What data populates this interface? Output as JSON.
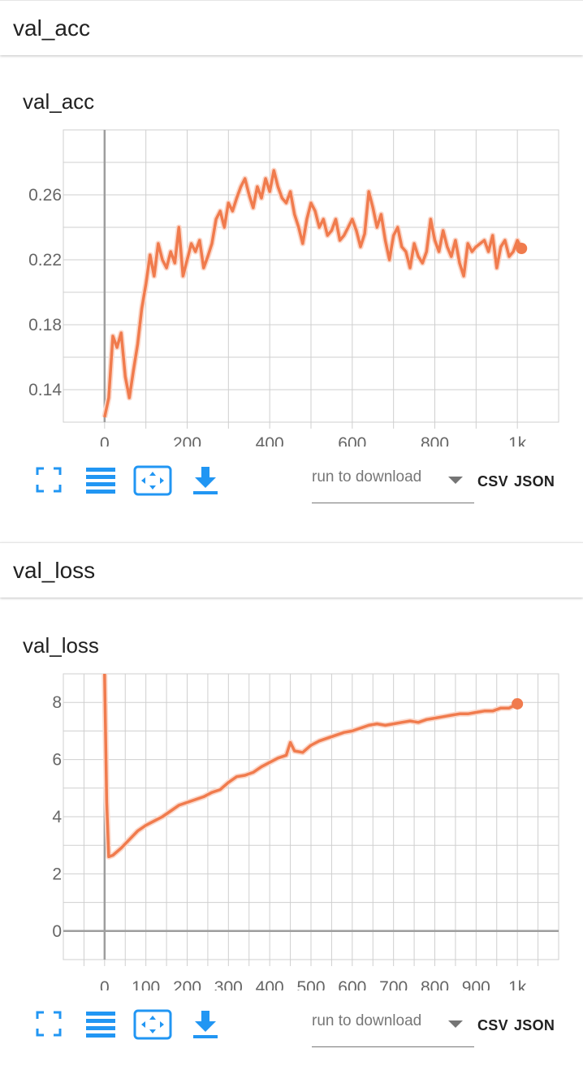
{
  "sections": [
    {
      "header": "val_acc",
      "card_title": "val_acc",
      "toolbar": {
        "dropdown_placeholder": "run to download",
        "csv_label": "CSV",
        "json_label": "JSON"
      }
    },
    {
      "header": "val_loss",
      "card_title": "val_loss",
      "toolbar": {
        "dropdown_placeholder": "run to download",
        "csv_label": "CSV",
        "json_label": "JSON"
      }
    }
  ],
  "icons": [
    "fit-to-screen-icon",
    "toggle-lines-icon",
    "fit-domain-icon",
    "download-icon"
  ],
  "colors": {
    "series": "#f07b4d",
    "series_raw": "#fbd9cc",
    "accent": "#2196f3",
    "grid": "#cfcfcf",
    "axis": "#9e9e9e"
  },
  "chart_data": [
    {
      "type": "line",
      "title": "val_acc",
      "xlabel": "",
      "ylabel": "",
      "xlim": [
        -100,
        1100
      ],
      "ylim": [
        0.12,
        0.3
      ],
      "xticks": [
        0,
        200,
        400,
        600,
        800,
        1000
      ],
      "xtick_labels": [
        "0",
        "200",
        "400",
        "600",
        "800",
        "1k"
      ],
      "yticks": [
        0.14,
        0.18,
        0.22,
        0.26
      ],
      "ytick_labels": [
        "0.14",
        "0.18",
        "0.22",
        "0.26"
      ],
      "grid": true,
      "series": [
        {
          "x": [
            0,
            10,
            20,
            30,
            40,
            50,
            60,
            70,
            80,
            90,
            100,
            110,
            120,
            130,
            140,
            150,
            160,
            170,
            180,
            190,
            200,
            210,
            220,
            230,
            240,
            250,
            260,
            270,
            280,
            290,
            300,
            310,
            320,
            330,
            340,
            350,
            360,
            370,
            380,
            390,
            400,
            410,
            420,
            430,
            440,
            450,
            460,
            470,
            480,
            490,
            500,
            510,
            520,
            530,
            540,
            550,
            560,
            570,
            580,
            590,
            600,
            610,
            620,
            630,
            640,
            650,
            660,
            670,
            680,
            690,
            700,
            710,
            720,
            730,
            740,
            750,
            760,
            770,
            780,
            790,
            800,
            810,
            820,
            830,
            840,
            850,
            860,
            870,
            880,
            890,
            900,
            910,
            920,
            930,
            940,
            950,
            960,
            970,
            980,
            990,
            1000,
            1010
          ],
          "values": [
            0.123,
            0.135,
            0.173,
            0.166,
            0.175,
            0.148,
            0.135,
            0.152,
            0.168,
            0.19,
            0.205,
            0.223,
            0.21,
            0.23,
            0.22,
            0.215,
            0.225,
            0.218,
            0.24,
            0.21,
            0.22,
            0.23,
            0.225,
            0.232,
            0.215,
            0.222,
            0.23,
            0.245,
            0.25,
            0.24,
            0.255,
            0.25,
            0.258,
            0.265,
            0.27,
            0.26,
            0.252,
            0.265,
            0.258,
            0.27,
            0.262,
            0.275,
            0.265,
            0.258,
            0.255,
            0.262,
            0.248,
            0.24,
            0.23,
            0.245,
            0.255,
            0.25,
            0.24,
            0.245,
            0.235,
            0.238,
            0.245,
            0.232,
            0.235,
            0.24,
            0.245,
            0.238,
            0.228,
            0.236,
            0.262,
            0.252,
            0.24,
            0.248,
            0.232,
            0.22,
            0.235,
            0.24,
            0.228,
            0.225,
            0.215,
            0.23,
            0.222,
            0.218,
            0.225,
            0.245,
            0.232,
            0.225,
            0.238,
            0.228,
            0.222,
            0.232,
            0.218,
            0.21,
            0.23,
            0.225,
            0.228,
            0.23,
            0.232,
            0.225,
            0.235,
            0.215,
            0.228,
            0.232,
            0.222,
            0.225,
            0.232,
            0.227
          ]
        }
      ]
    },
    {
      "type": "line",
      "title": "val_loss",
      "xlabel": "",
      "ylabel": "",
      "xlim": [
        -100,
        1100
      ],
      "ylim": [
        -1,
        9
      ],
      "xticks": [
        0,
        100,
        200,
        300,
        400,
        500,
        600,
        700,
        800,
        900,
        1000
      ],
      "xtick_labels": [
        "0",
        "100",
        "200",
        "300",
        "400",
        "500",
        "600",
        "700",
        "800",
        "900",
        "1k"
      ],
      "yticks": [
        0,
        2,
        4,
        6,
        8
      ],
      "ytick_labels": [
        "0",
        "2",
        "4",
        "6",
        "8"
      ],
      "grid": true,
      "series": [
        {
          "x": [
            0,
            5,
            10,
            20,
            40,
            60,
            80,
            100,
            120,
            140,
            160,
            180,
            200,
            220,
            240,
            260,
            280,
            300,
            320,
            340,
            360,
            380,
            400,
            420,
            440,
            450,
            460,
            480,
            500,
            520,
            540,
            560,
            580,
            600,
            620,
            640,
            660,
            680,
            700,
            720,
            740,
            760,
            780,
            800,
            820,
            840,
            860,
            880,
            900,
            920,
            940,
            960,
            980,
            1000
          ],
          "values": [
            9.0,
            4.5,
            2.6,
            2.65,
            2.9,
            3.2,
            3.5,
            3.7,
            3.85,
            4.0,
            4.2,
            4.4,
            4.5,
            4.6,
            4.7,
            4.85,
            4.95,
            5.2,
            5.4,
            5.45,
            5.55,
            5.75,
            5.9,
            6.05,
            6.15,
            6.6,
            6.3,
            6.25,
            6.5,
            6.65,
            6.75,
            6.85,
            6.95,
            7.0,
            7.1,
            7.2,
            7.25,
            7.2,
            7.25,
            7.3,
            7.35,
            7.3,
            7.4,
            7.45,
            7.5,
            7.55,
            7.6,
            7.6,
            7.65,
            7.7,
            7.7,
            7.8,
            7.8,
            7.95
          ]
        }
      ]
    }
  ]
}
